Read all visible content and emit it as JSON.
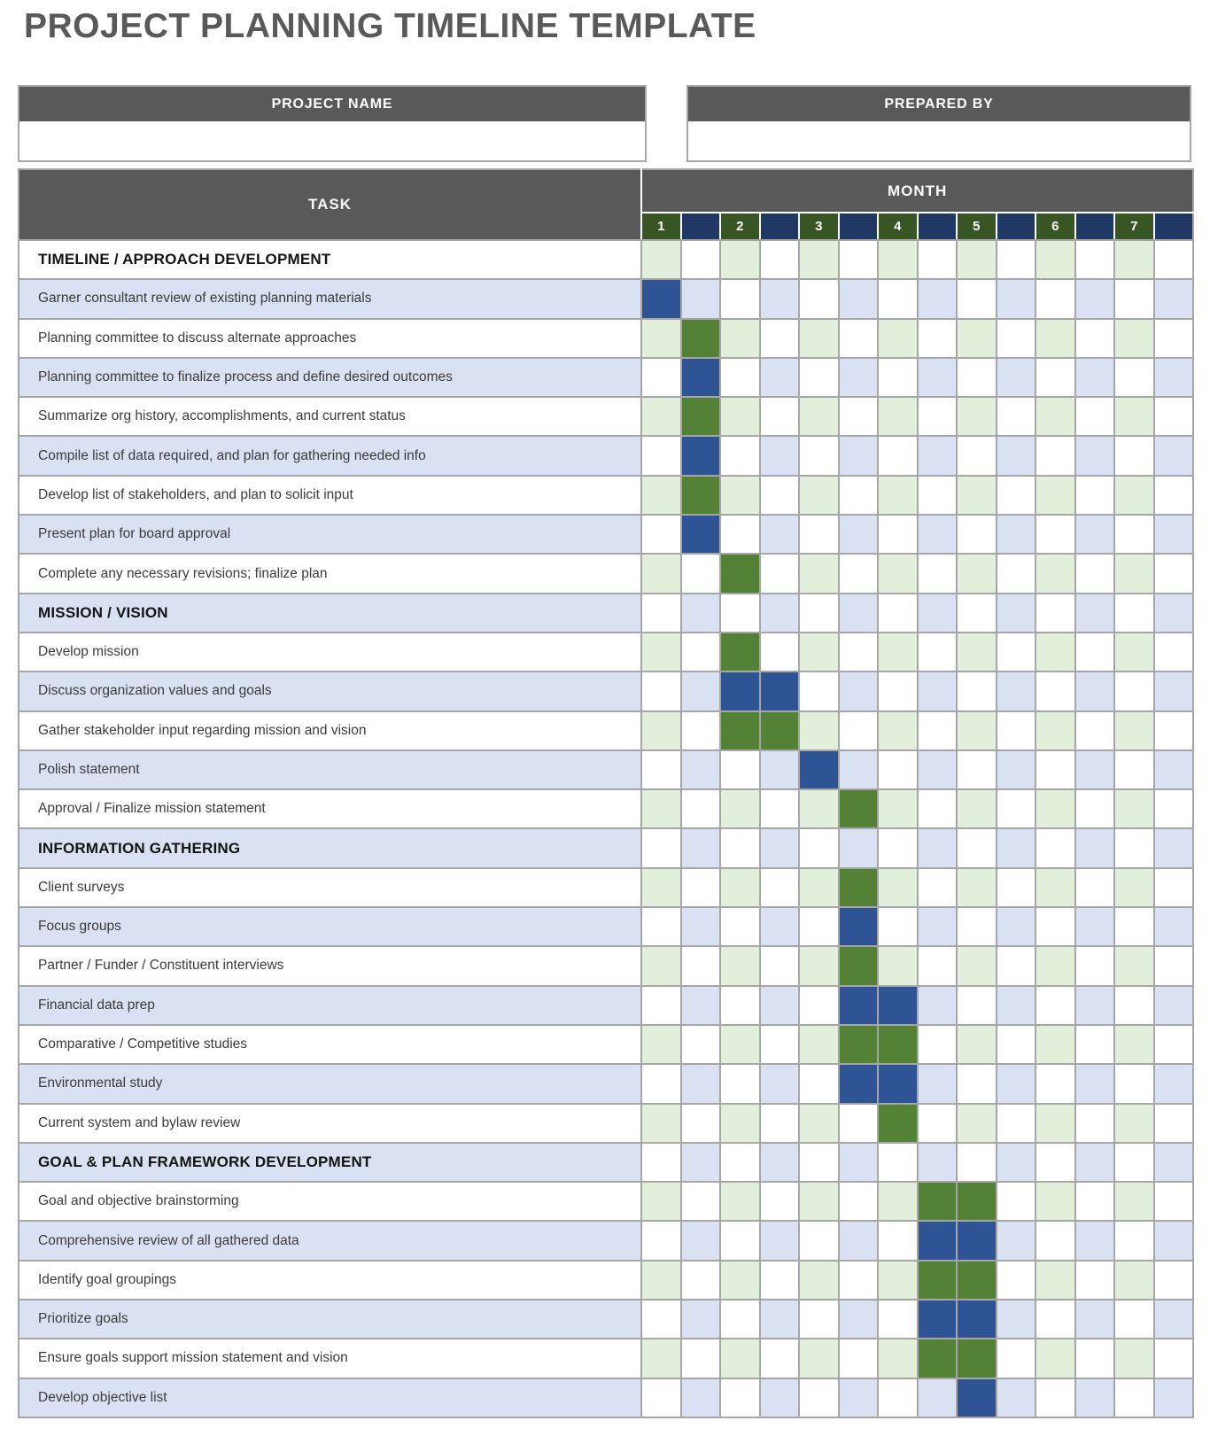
{
  "page_title": "PROJECT PLANNING TIMELINE TEMPLATE",
  "meta": {
    "project_name_label": "PROJECT NAME",
    "project_name_value": "",
    "prepared_by_label": "PREPARED BY",
    "prepared_by_value": ""
  },
  "table": {
    "task_header": "TASK",
    "month_header": "MONTH",
    "month_numbers": [
      "1",
      "2",
      "3",
      "4",
      "5",
      "6",
      "7"
    ],
    "columns_per_month": 2,
    "colors": {
      "header_gray": "#595959",
      "month_number_green": "#375623",
      "month_spacer_navy": "#1f3864",
      "fill_green": "#538135",
      "fill_blue": "#2f5496",
      "tint_green": "#e2efda",
      "tint_lavender": "#d9e1f2",
      "cell_white": "#ffffff",
      "grid_border": "#a6a6a6",
      "title_gray": "#595959"
    },
    "rows": [
      {
        "kind": "section",
        "label": "TIMELINE / APPROACH DEVELOPMENT",
        "shade": "white",
        "fill_cols": [],
        "fill": ""
      },
      {
        "kind": "task",
        "label": "Garner consultant review of existing planning materials",
        "shade": "lavender",
        "fill_cols": [
          1
        ],
        "fill": "blue"
      },
      {
        "kind": "task",
        "label": "Planning committee to discuss alternate approaches",
        "shade": "white",
        "fill_cols": [
          2
        ],
        "fill": "green"
      },
      {
        "kind": "task",
        "label": "Planning committee to finalize process and define desired outcomes",
        "shade": "lavender",
        "fill_cols": [
          2
        ],
        "fill": "blue"
      },
      {
        "kind": "task",
        "label": "Summarize org history, accomplishments, and current status",
        "shade": "white",
        "fill_cols": [
          2
        ],
        "fill": "green"
      },
      {
        "kind": "task",
        "label": "Compile list of data required, and plan for gathering needed info",
        "shade": "lavender",
        "fill_cols": [
          2
        ],
        "fill": "blue"
      },
      {
        "kind": "task",
        "label": "Develop list of stakeholders, and plan to solicit input",
        "shade": "white",
        "fill_cols": [
          2
        ],
        "fill": "green"
      },
      {
        "kind": "task",
        "label": "Present plan for board approval",
        "shade": "lavender",
        "fill_cols": [
          2
        ],
        "fill": "blue"
      },
      {
        "kind": "task",
        "label": "Complete any necessary revisions; finalize plan",
        "shade": "white",
        "fill_cols": [
          3
        ],
        "fill": "green"
      },
      {
        "kind": "section",
        "label": "MISSION / VISION",
        "shade": "lavender",
        "fill_cols": [],
        "fill": ""
      },
      {
        "kind": "task",
        "label": "Develop mission",
        "shade": "white",
        "fill_cols": [
          3
        ],
        "fill": "green"
      },
      {
        "kind": "task",
        "label": "Discuss organization values and goals",
        "shade": "lavender",
        "fill_cols": [
          3,
          4
        ],
        "fill": "blue"
      },
      {
        "kind": "task",
        "label": "Gather stakeholder input regarding mission and vision",
        "shade": "white",
        "fill_cols": [
          3,
          4
        ],
        "fill": "green"
      },
      {
        "kind": "task",
        "label": "Polish statement",
        "shade": "lavender",
        "fill_cols": [
          5
        ],
        "fill": "blue"
      },
      {
        "kind": "task",
        "label": "Approval / Finalize mission statement",
        "shade": "white",
        "fill_cols": [
          6
        ],
        "fill": "green"
      },
      {
        "kind": "section",
        "label": "INFORMATION GATHERING",
        "shade": "lavender",
        "fill_cols": [],
        "fill": ""
      },
      {
        "kind": "task",
        "label": "Client surveys",
        "shade": "white",
        "fill_cols": [
          6
        ],
        "fill": "green"
      },
      {
        "kind": "task",
        "label": "Focus groups",
        "shade": "lavender",
        "fill_cols": [
          6
        ],
        "fill": "blue"
      },
      {
        "kind": "task",
        "label": "Partner / Funder / Constituent interviews",
        "shade": "white",
        "fill_cols": [
          6
        ],
        "fill": "green"
      },
      {
        "kind": "task",
        "label": "Financial data prep",
        "shade": "lavender",
        "fill_cols": [
          6,
          7
        ],
        "fill": "blue"
      },
      {
        "kind": "task",
        "label": "Comparative / Competitive studies",
        "shade": "white",
        "fill_cols": [
          6,
          7
        ],
        "fill": "green"
      },
      {
        "kind": "task",
        "label": "Environmental study",
        "shade": "lavender",
        "fill_cols": [
          6,
          7
        ],
        "fill": "blue"
      },
      {
        "kind": "task",
        "label": "Current system and bylaw review",
        "shade": "white",
        "fill_cols": [
          7
        ],
        "fill": "green"
      },
      {
        "kind": "section",
        "label": "GOAL & PLAN FRAMEWORK DEVELOPMENT",
        "shade": "lavender",
        "fill_cols": [],
        "fill": ""
      },
      {
        "kind": "task",
        "label": "Goal and objective brainstorming",
        "shade": "white",
        "fill_cols": [
          8,
          9
        ],
        "fill": "green"
      },
      {
        "kind": "task",
        "label": "Comprehensive review of all gathered data",
        "shade": "lavender",
        "fill_cols": [
          8,
          9
        ],
        "fill": "blue"
      },
      {
        "kind": "task",
        "label": "Identify goal groupings",
        "shade": "white",
        "fill_cols": [
          8,
          9
        ],
        "fill": "green"
      },
      {
        "kind": "task",
        "label": "Prioritize goals",
        "shade": "lavender",
        "fill_cols": [
          8,
          9
        ],
        "fill": "blue"
      },
      {
        "kind": "task",
        "label": "Ensure goals support mission statement and vision",
        "shade": "white",
        "fill_cols": [
          8,
          9
        ],
        "fill": "green"
      },
      {
        "kind": "task",
        "label": "Develop objective list",
        "shade": "lavender",
        "fill_cols": [
          9
        ],
        "fill": "blue"
      }
    ]
  }
}
